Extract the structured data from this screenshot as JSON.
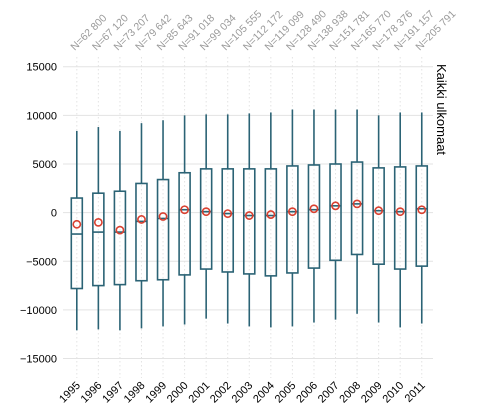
{
  "chart_data": {
    "type": "boxplot",
    "facet_label": "Kaikki ulkomaat",
    "categories": [
      "1995",
      "1996",
      "1997",
      "1998",
      "1999",
      "2000",
      "2001",
      "2002",
      "2003",
      "2004",
      "2005",
      "2006",
      "2007",
      "2008",
      "2009",
      "2010",
      "2011"
    ],
    "n_labels": [
      "N=62 800",
      "N=67 120",
      "N=73 207",
      "N=79 642",
      "N=85 643",
      "N=91 018",
      "N=99 034",
      "N=105 555",
      "N=112 172",
      "N=119 099",
      "N=128 490",
      "N=138 938",
      "N=151 781",
      "N=165 770",
      "N=178 376",
      "N=191 157",
      "N=205 791"
    ],
    "boxes": [
      {
        "whisker_low": -12100,
        "q1": -7800,
        "median": -2200,
        "q3": 1500,
        "whisker_high": 8400,
        "mean": -1200
      },
      {
        "whisker_low": -12000,
        "q1": -7500,
        "median": -2000,
        "q3": 2000,
        "whisker_high": 8800,
        "mean": -1000
      },
      {
        "whisker_low": -12100,
        "q1": -7400,
        "median": -2000,
        "q3": 2200,
        "whisker_high": 8400,
        "mean": -1800
      },
      {
        "whisker_low": -11900,
        "q1": -7000,
        "median": -900,
        "q3": 3000,
        "whisker_high": 9200,
        "mean": -700
      },
      {
        "whisker_low": -11700,
        "q1": -6900,
        "median": -600,
        "q3": 3400,
        "whisker_high": 9500,
        "mean": -400
      },
      {
        "whisker_low": -11500,
        "q1": -6400,
        "median": 300,
        "q3": 4100,
        "whisker_high": 10000,
        "mean": 300
      },
      {
        "whisker_low": -10900,
        "q1": -5800,
        "median": 100,
        "q3": 4500,
        "whisker_high": 10100,
        "mean": 100
      },
      {
        "whisker_low": -11400,
        "q1": -6100,
        "median": -100,
        "q3": 4500,
        "whisker_high": 10100,
        "mean": -100
      },
      {
        "whisker_low": -11700,
        "q1": -6300,
        "median": -300,
        "q3": 4500,
        "whisker_high": 10200,
        "mean": -300
      },
      {
        "whisker_low": -11800,
        "q1": -6500,
        "median": -300,
        "q3": 4500,
        "whisker_high": 10300,
        "mean": -200
      },
      {
        "whisker_low": -11700,
        "q1": -6200,
        "median": 100,
        "q3": 4800,
        "whisker_high": 10600,
        "mean": 100
      },
      {
        "whisker_low": -11300,
        "q1": -5700,
        "median": 300,
        "q3": 4900,
        "whisker_high": 10600,
        "mean": 400
      },
      {
        "whisker_low": -11000,
        "q1": -4900,
        "median": 700,
        "q3": 5000,
        "whisker_high": 10600,
        "mean": 700
      },
      {
        "whisker_low": -10400,
        "q1": -4300,
        "median": 900,
        "q3": 5200,
        "whisker_high": 10600,
        "mean": 900
      },
      {
        "whisker_low": -11300,
        "q1": -5300,
        "median": 200,
        "q3": 4600,
        "whisker_high": 10000,
        "mean": 200
      },
      {
        "whisker_low": -11800,
        "q1": -5800,
        "median": 100,
        "q3": 4700,
        "whisker_high": 10300,
        "mean": 100
      },
      {
        "whisker_low": -11400,
        "q1": -5500,
        "median": 400,
        "q3": 4800,
        "whisker_high": 10300,
        "mean": 300
      }
    ],
    "ylim": [
      -17000,
      16000
    ],
    "yticks": [
      -15000,
      -10000,
      -5000,
      0,
      5000,
      10000,
      15000
    ],
    "ytick_labels": [
      "−15000",
      "−10000",
      "−5000",
      "0",
      "5000",
      "10000",
      "15000"
    ],
    "grid": true,
    "colors": {
      "box": "#2b6375",
      "mean_marker": "#d94030",
      "grid": "#e3e3e3",
      "n_label": "#9a9a9a"
    }
  }
}
